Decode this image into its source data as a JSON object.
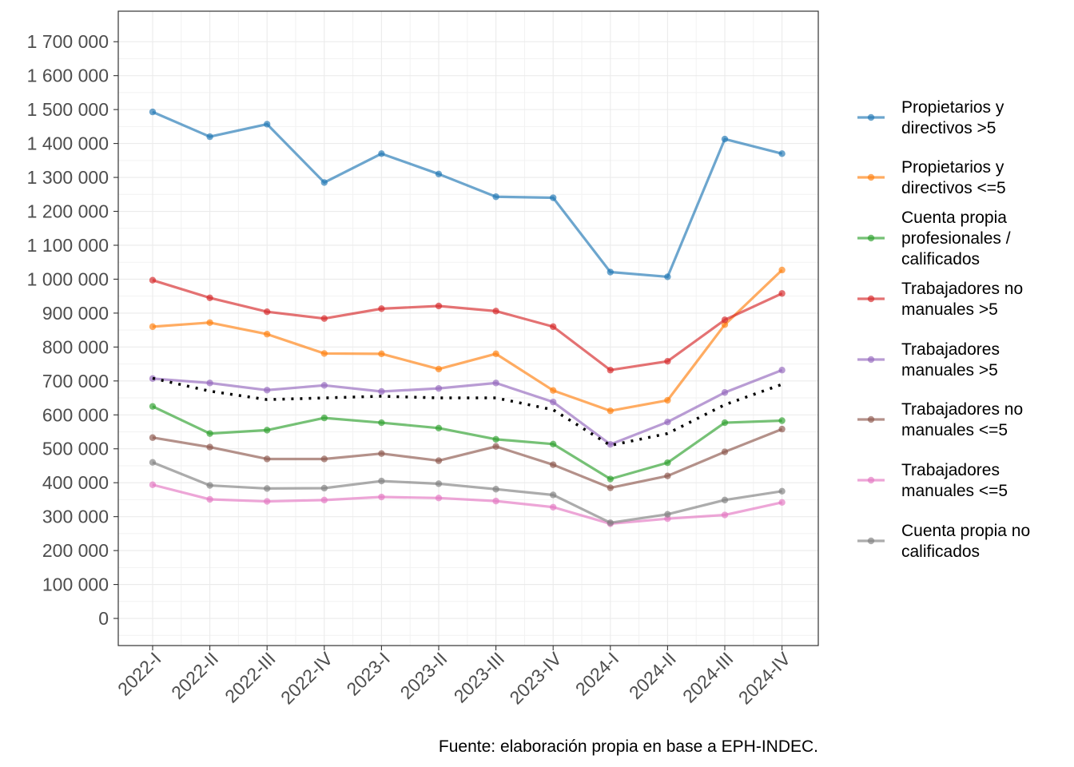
{
  "chart_data": {
    "type": "line",
    "x": [
      "2022-I",
      "2022-II",
      "2022-III",
      "2022-IV",
      "2023-I",
      "2023-II",
      "2023-III",
      "2023-IV",
      "2024-I",
      "2024-II",
      "2024-III",
      "2024-IV"
    ],
    "ylim": [
      -80000,
      1790000
    ],
    "yticks": [
      0,
      100000,
      200000,
      300000,
      400000,
      500000,
      600000,
      700000,
      800000,
      900000,
      1000000,
      1100000,
      1200000,
      1300000,
      1400000,
      1500000,
      1600000,
      1700000
    ],
    "ytick_labels": [
      "0",
      "100 000",
      "200 000",
      "300 000",
      "400 000",
      "500 000",
      "600 000",
      "700 000",
      "800 000",
      "900 000",
      "1 000 000",
      "1 100 000",
      "1 200 000",
      "1 300 000",
      "1 400 000",
      "1 500 000",
      "1 600 000",
      "1 700 000"
    ],
    "grid": true,
    "legend_position": "right",
    "caption": "Fuente: elaboración propia en base a EPH-INDEC.",
    "series": [
      {
        "name": "Propietarios y directivos >5",
        "label_lines": [
          "Propietarios y",
          "directivos >5"
        ],
        "color": "#1f77b4",
        "values": [
          1493000,
          1420000,
          1457000,
          1285000,
          1370000,
          1310000,
          1243000,
          1240000,
          1021000,
          1007000,
          1413000,
          1370000
        ]
      },
      {
        "name": "Propietarios y directivos <=5",
        "label_lines": [
          "Propietarios y",
          "directivos <=5"
        ],
        "color": "#ff7f0e",
        "values": [
          860000,
          872000,
          838000,
          781000,
          780000,
          735000,
          780000,
          672000,
          612000,
          643000,
          866000,
          1027000
        ]
      },
      {
        "name": "Cuenta propia profesionales / calificados",
        "label_lines": [
          "Cuenta propia",
          "profesionales /",
          "calificados"
        ],
        "color": "#2ca02c",
        "values": [
          625000,
          545000,
          555000,
          591000,
          577000,
          561000,
          528000,
          514000,
          411000,
          459000,
          577000,
          583000
        ]
      },
      {
        "name": "Trabajadores no manuales >5",
        "label_lines": [
          "Trabajadores no",
          "manuales >5"
        ],
        "color": "#d62728",
        "values": [
          997000,
          945000,
          904000,
          884000,
          913000,
          921000,
          906000,
          860000,
          732000,
          758000,
          880000,
          958000
        ]
      },
      {
        "name": "Trabajadores manuales >5",
        "label_lines": [
          "Trabajadores",
          "manuales >5"
        ],
        "color": "#9467bd",
        "values": [
          707000,
          694000,
          673000,
          687000,
          669000,
          678000,
          694000,
          638000,
          513000,
          579000,
          666000,
          732000
        ]
      },
      {
        "name": "Trabajadores no manuales <=5",
        "label_lines": [
          "Trabajadores no",
          "manuales <=5"
        ],
        "color": "#8c564b",
        "values": [
          533000,
          505000,
          470000,
          470000,
          486000,
          465000,
          507000,
          453000,
          385000,
          420000,
          491000,
          558000
        ]
      },
      {
        "name": "Trabajadores manuales <=5",
        "label_lines": [
          "Trabajadores",
          "manuales <=5"
        ],
        "color": "#e377c2",
        "values": [
          394000,
          351000,
          345000,
          349000,
          358000,
          355000,
          346000,
          328000,
          279000,
          294000,
          305000,
          342000
        ]
      },
      {
        "name": "Cuenta propia no calificados",
        "label_lines": [
          "Cuenta propia no",
          "calificados"
        ],
        "color": "#7f7f7f",
        "values": [
          460000,
          392000,
          383000,
          384000,
          405000,
          397000,
          381000,
          364000,
          282000,
          307000,
          349000,
          375000
        ]
      }
    ],
    "reference_line": {
      "style": "dotted",
      "color": "#000000",
      "values": [
        708000,
        670000,
        645000,
        650000,
        655000,
        650000,
        650000,
        615000,
        510000,
        545000,
        630000,
        690000
      ]
    }
  }
}
